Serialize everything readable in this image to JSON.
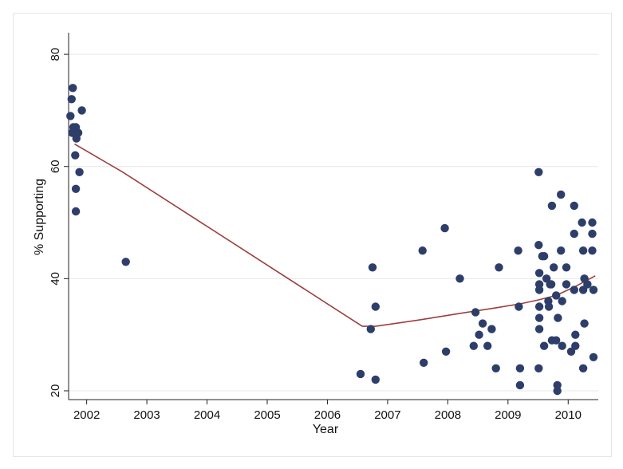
{
  "chart_data": {
    "type": "scatter",
    "title": "",
    "xlabel": "Year",
    "ylabel": "% Supporting",
    "xlim": [
      2001.7,
      2010.5
    ],
    "ylim": [
      19,
      83
    ],
    "x_ticks": [
      2002,
      2003,
      2004,
      2005,
      2006,
      2007,
      2008,
      2009,
      2010
    ],
    "y_ticks": [
      20,
      40,
      60,
      80
    ],
    "grid": "horizontal",
    "legend": "none",
    "colors": {
      "points": "#2e3e6a",
      "fit_line": "#9c3f3f",
      "grid": "#e7e7e7",
      "axis": "#222222"
    },
    "series": [
      {
        "kind": "points",
        "points": [
          [
            2001.77,
            74
          ],
          [
            2001.75,
            72
          ],
          [
            2001.73,
            69
          ],
          [
            2001.92,
            70
          ],
          [
            2001.78,
            67
          ],
          [
            2001.82,
            67
          ],
          [
            2001.76,
            66
          ],
          [
            2001.8,
            66
          ],
          [
            2001.86,
            66
          ],
          [
            2001.83,
            65
          ],
          [
            2001.81,
            62
          ],
          [
            2001.88,
            59
          ],
          [
            2001.82,
            56
          ],
          [
            2001.82,
            52
          ],
          [
            2002.65,
            43
          ],
          [
            2006.55,
            23
          ],
          [
            2006.72,
            31
          ],
          [
            2006.75,
            42
          ],
          [
            2006.8,
            35
          ],
          [
            2006.8,
            22
          ],
          [
            2007.58,
            45
          ],
          [
            2007.6,
            25
          ],
          [
            2007.95,
            49
          ],
          [
            2007.97,
            27
          ],
          [
            2008.2,
            40
          ],
          [
            2008.43,
            28
          ],
          [
            2008.46,
            34
          ],
          [
            2008.52,
            30
          ],
          [
            2008.58,
            32
          ],
          [
            2008.66,
            28
          ],
          [
            2008.73,
            31
          ],
          [
            2008.8,
            24
          ],
          [
            2008.85,
            42
          ],
          [
            2009.17,
            45
          ],
          [
            2009.18,
            35
          ],
          [
            2009.2,
            24
          ],
          [
            2009.2,
            21
          ],
          [
            2009.51,
            59
          ],
          [
            2009.51,
            46
          ],
          [
            2009.52,
            41
          ],
          [
            2009.52,
            39
          ],
          [
            2009.52,
            38
          ],
          [
            2009.52,
            35
          ],
          [
            2009.52,
            33
          ],
          [
            2009.52,
            31
          ],
          [
            2009.51,
            24
          ],
          [
            2009.57,
            44
          ],
          [
            2009.6,
            44
          ],
          [
            2009.6,
            28
          ],
          [
            2009.64,
            40
          ],
          [
            2009.67,
            36
          ],
          [
            2009.68,
            35
          ],
          [
            2009.7,
            39
          ],
          [
            2009.72,
            39
          ],
          [
            2009.73,
            53
          ],
          [
            2009.73,
            29
          ],
          [
            2009.76,
            42
          ],
          [
            2009.8,
            37
          ],
          [
            2009.83,
            33
          ],
          [
            2009.8,
            29
          ],
          [
            2009.82,
            21
          ],
          [
            2009.82,
            20
          ],
          [
            2009.88,
            55
          ],
          [
            2009.88,
            45
          ],
          [
            2009.9,
            36
          ],
          [
            2009.9,
            28
          ],
          [
            2009.97,
            42
          ],
          [
            2009.97,
            39
          ],
          [
            2010.05,
            27
          ],
          [
            2010.1,
            53
          ],
          [
            2010.1,
            48
          ],
          [
            2010.1,
            38
          ],
          [
            2010.12,
            30
          ],
          [
            2010.12,
            28
          ],
          [
            2010.23,
            50
          ],
          [
            2010.25,
            45
          ],
          [
            2010.25,
            38
          ],
          [
            2010.27,
            40
          ],
          [
            2010.27,
            32
          ],
          [
            2010.25,
            24
          ],
          [
            2010.32,
            39
          ],
          [
            2010.4,
            50
          ],
          [
            2010.4,
            48
          ],
          [
            2010.4,
            45
          ],
          [
            2010.42,
            38
          ],
          [
            2010.42,
            26
          ]
        ]
      },
      {
        "kind": "line",
        "points": [
          [
            2001.8,
            64
          ],
          [
            2002.6,
            59
          ],
          [
            2006.58,
            31.5
          ],
          [
            2006.8,
            31.5
          ],
          [
            2007.5,
            32.6
          ],
          [
            2008.2,
            33.8
          ],
          [
            2008.8,
            34.8
          ],
          [
            2009.2,
            35.5
          ],
          [
            2009.5,
            36.2
          ],
          [
            2009.8,
            37
          ],
          [
            2010.1,
            38.5
          ],
          [
            2010.45,
            40.5
          ]
        ]
      }
    ]
  }
}
